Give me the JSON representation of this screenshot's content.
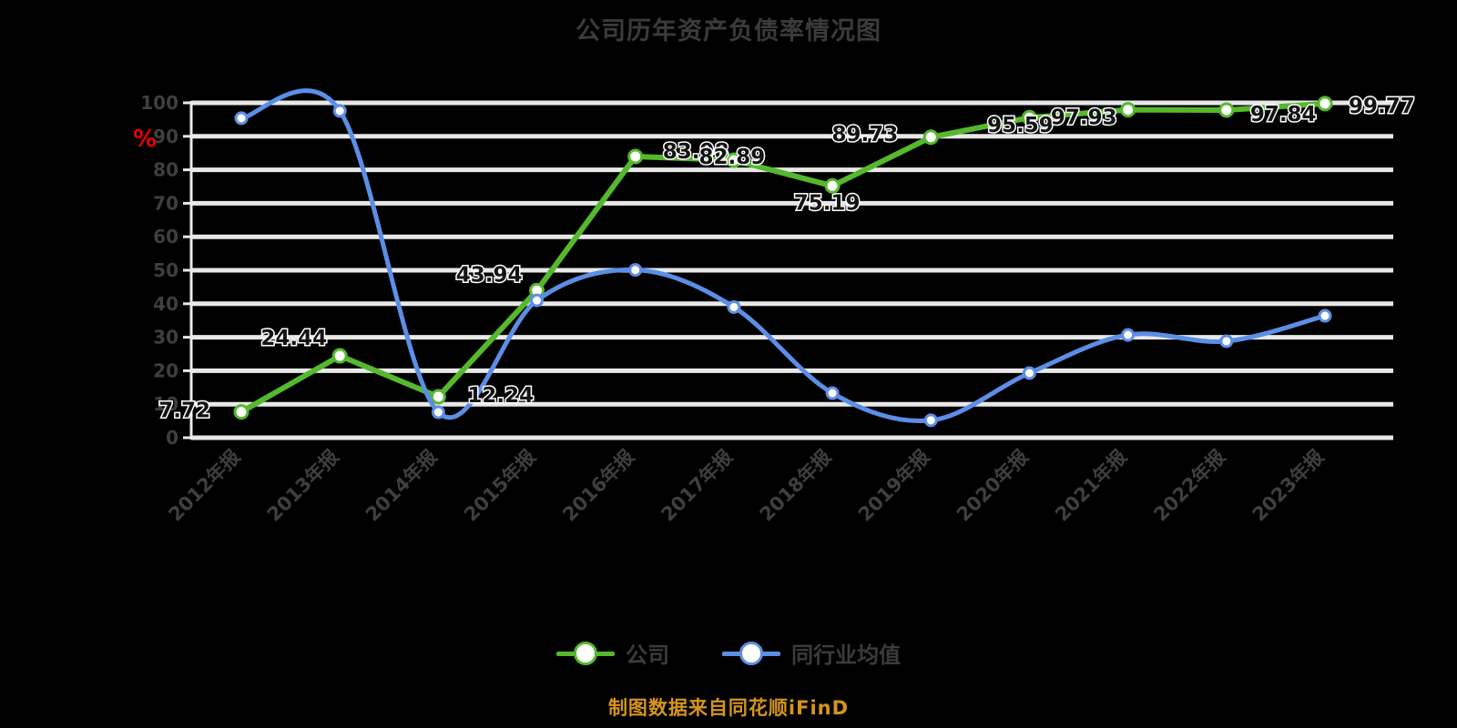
{
  "title": "公司历年资产负债率情况图",
  "y_axis": {
    "unit_label": "%",
    "unit_color": "#e80000",
    "tick_labels": [
      "100",
      "90",
      "80",
      "70",
      "60",
      "50",
      "40",
      "30",
      "20",
      "10",
      "0"
    ]
  },
  "chart_data": {
    "type": "line",
    "title": "公司历年资产负债率情况图",
    "xlabel": "",
    "ylabel": "%",
    "ylim": [
      0,
      100
    ],
    "ytick_step": 10,
    "grid": true,
    "legend_position": "bottom",
    "categories": [
      "2012年报",
      "2013年报",
      "2014年报",
      "2015年报",
      "2016年报",
      "2017年报",
      "2018年报",
      "2019年报",
      "2020年报",
      "2021年报",
      "2022年报",
      "2023年报"
    ],
    "series": [
      {
        "name": "公司",
        "color": "#55b82d",
        "smooth": false,
        "values": [
          7.72,
          24.44,
          12.24,
          43.94,
          83.98,
          82.89,
          75.19,
          89.73,
          95.59,
          97.93,
          97.84,
          99.77
        ],
        "data_labels": [
          "7.72",
          "24.44",
          "12.24",
          "43.94",
          "83.98",
          "82.89",
          "75.19",
          "89.73",
          "95.59",
          "97.93",
          "97.84",
          "99.77"
        ],
        "label_offsets": [
          [
            -34,
            6
          ],
          [
            -14,
            -12
          ],
          [
            32,
            6
          ],
          [
            -16,
            -10
          ],
          [
            30,
            2
          ],
          [
            -2,
            4
          ],
          [
            -6,
            26
          ],
          [
            -36,
            4
          ],
          [
            -10,
            16
          ],
          [
            -12,
            16
          ],
          [
            26,
            12
          ],
          [
            26,
            10
          ]
        ]
      },
      {
        "name": "同行业均值",
        "color": "#5c8ee6",
        "smooth": true,
        "values": [
          95.4,
          97.6,
          7.6,
          41.0,
          50.1,
          39.0,
          13.3,
          5.2,
          19.3,
          30.7,
          28.8,
          36.4
        ],
        "data_labels": [],
        "label_offsets": []
      }
    ]
  },
  "legend": {
    "items": [
      {
        "label": "公司",
        "color": "#55b82d"
      },
      {
        "label": "同行业均值",
        "color": "#5c8ee6"
      }
    ]
  },
  "footer": {
    "source_text": "制图数据来自同花顺iFinD"
  },
  "style_colors": {
    "background": "#000000",
    "gridline": "#e8e8e8",
    "axis_text": "#3f3f3f",
    "data_label_text": "#141414"
  }
}
